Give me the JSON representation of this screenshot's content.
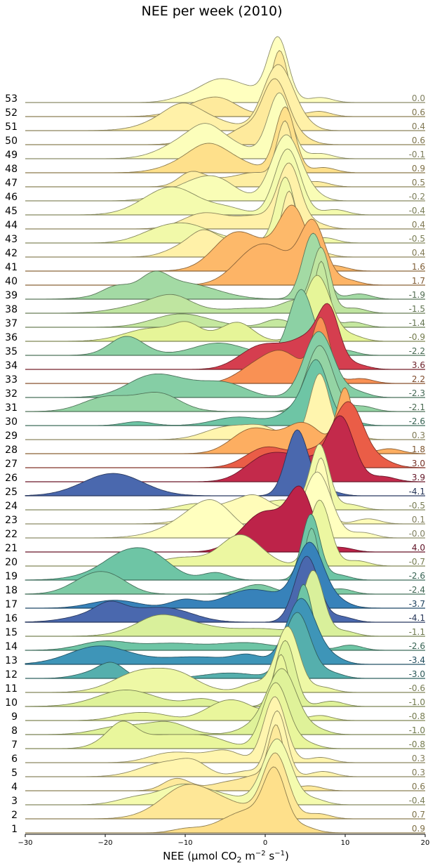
{
  "chart_data": {
    "type": "ridgeline",
    "title": "NEE per week (2010)",
    "xlabel": "NEE (μmol CO",
    "xlabel_sub": "2",
    "xlabel_mid": " m",
    "xlabel_sup1": "−2",
    "xlabel_mid2": " s",
    "xlabel_sup2": "−1",
    "xlabel_end": ")",
    "xlim": [
      -30,
      20
    ],
    "xticks": [
      -30,
      -20,
      -10,
      0,
      10,
      20
    ],
    "colormap": "Spectral_r",
    "weeks": [
      1,
      2,
      3,
      4,
      5,
      6,
      7,
      8,
      9,
      10,
      11,
      12,
      13,
      14,
      15,
      16,
      17,
      18,
      19,
      20,
      21,
      22,
      23,
      24,
      25,
      26,
      27,
      28,
      29,
      30,
      31,
      32,
      33,
      34,
      35,
      36,
      37,
      38,
      39,
      40,
      41,
      42,
      43,
      44,
      45,
      46,
      47,
      48,
      49,
      50,
      51,
      52,
      53
    ],
    "weekly_mean": [
      "0.9",
      "0.7",
      "-0.4",
      "0.6",
      "0.3",
      "0.3",
      "-0.8",
      "-1.0",
      "-0.8",
      "-1.0",
      "-0.6",
      "-3.0",
      "-3.4",
      "-2.6",
      "-1.1",
      "-4.1",
      "-3.7",
      "-2.4",
      "-2.6",
      "-0.7",
      "4.0",
      "-0.0",
      "0.1",
      "-0.5",
      "-4.1",
      "3.9",
      "3.0",
      "1.8",
      "0.3",
      "-2.6",
      "-2.1",
      "-2.3",
      "2.2",
      "3.6",
      "-2.2",
      "-0.9",
      "-1.4",
      "-1.5",
      "-1.9",
      "1.7",
      "1.6",
      "0.4",
      "-0.5",
      "0.4",
      "-0.4",
      "-0.2",
      "0.5",
      "0.9",
      "-0.1",
      "0.6",
      "0.4",
      "0.6",
      "0.0"
    ],
    "peak_position": [
      1.2,
      1.3,
      1.5,
      1.4,
      1.5,
      1.2,
      1.3,
      2.2,
      2.0,
      2.5,
      2.8,
      4.0,
      4.5,
      4.8,
      6.0,
      5.2,
      5.6,
      5.8,
      5.7,
      6.8,
      4.5,
      6.5,
      7.0,
      6.8,
      4.0,
      9.5,
      10.5,
      10.0,
      6.8,
      6.5,
      6.8,
      6.7,
      7.0,
      8.0,
      4.5,
      6.5,
      7.0,
      7.0,
      6.0,
      6.0,
      3.5,
      3.0,
      2.5,
      3.0,
      2.8,
      2.6,
      2.5,
      2.5,
      1.8,
      1.2,
      1.6,
      1.8,
      1.6
    ]
  }
}
